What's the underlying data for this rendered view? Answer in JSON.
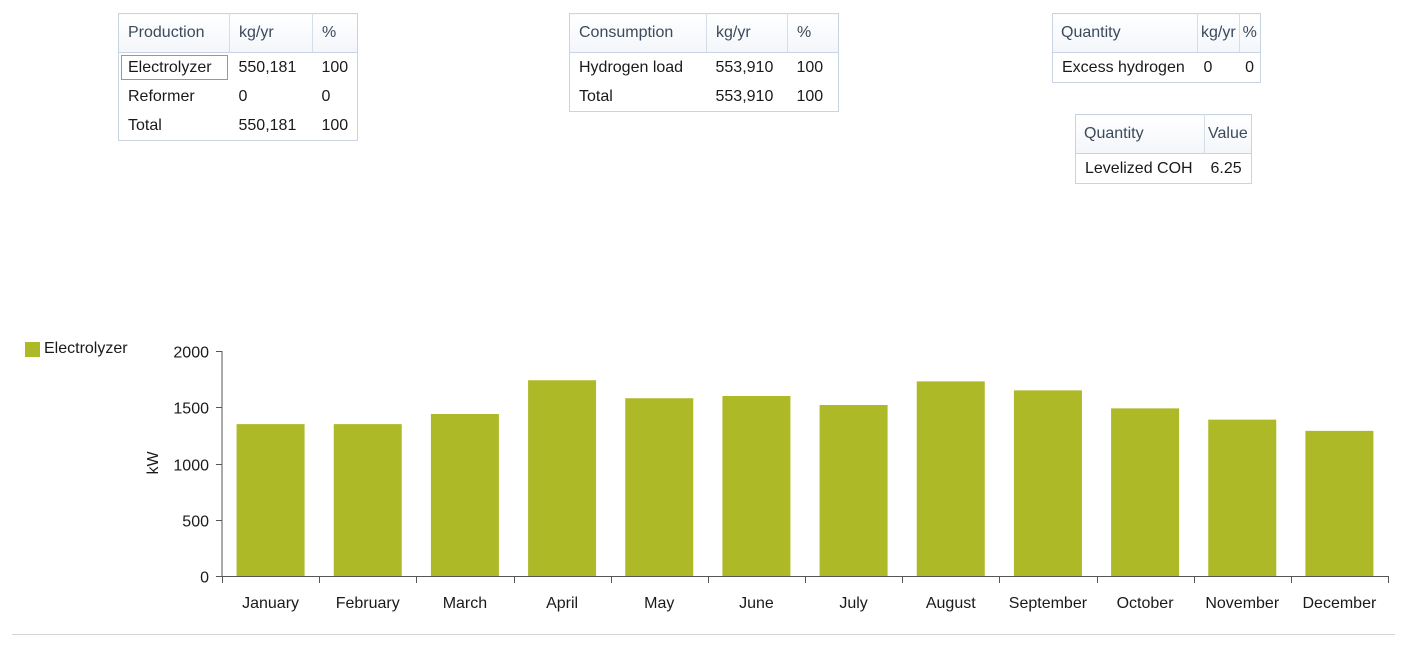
{
  "production_table": {
    "headers": [
      "Production",
      "kg/yr",
      "%"
    ],
    "rows": [
      [
        "Electrolyzer",
        "550,181",
        "100"
      ],
      [
        "Reformer",
        "0",
        "0"
      ],
      [
        "Total",
        "550,181",
        "100"
      ]
    ]
  },
  "consumption_table": {
    "headers": [
      "Consumption",
      "kg/yr",
      "%"
    ],
    "rows": [
      [
        "Hydrogen load",
        "553,910",
        "100"
      ],
      [
        "Total",
        "553,910",
        "100"
      ]
    ]
  },
  "excess_table": {
    "headers": [
      "Quantity",
      "kg/yr",
      "%"
    ],
    "rows": [
      [
        "Excess hydrogen",
        "0",
        "0"
      ]
    ]
  },
  "coh_table": {
    "headers": [
      "Quantity",
      "Value"
    ],
    "rows": [
      [
        "Levelized COH",
        "6.25"
      ]
    ]
  },
  "colors": {
    "bar": "#adb927"
  },
  "chart_data": {
    "type": "bar",
    "categories": [
      "January",
      "February",
      "March",
      "April",
      "May",
      "June",
      "July",
      "August",
      "September",
      "October",
      "November",
      "December"
    ],
    "series": [
      {
        "name": "Electrolyzer",
        "values": [
          1350,
          1350,
          1440,
          1740,
          1580,
          1600,
          1520,
          1730,
          1650,
          1490,
          1390,
          1290
        ]
      }
    ],
    "ylabel": "kW",
    "xlabel": "",
    "ylim": [
      0,
      2000
    ],
    "yticks": [
      0,
      500,
      1000,
      1500,
      2000
    ],
    "legend": "left"
  }
}
